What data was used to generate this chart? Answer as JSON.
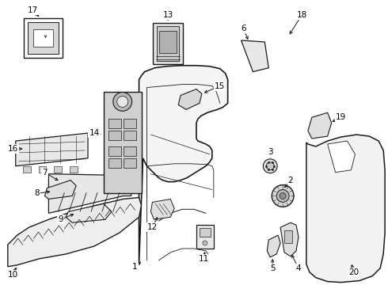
{
  "background_color": "#ffffff",
  "line_color": "#1a1a1a",
  "text_color": "#000000",
  "font_size": 7.5,
  "fig_w": 4.9,
  "fig_h": 3.6,
  "dpi": 100
}
